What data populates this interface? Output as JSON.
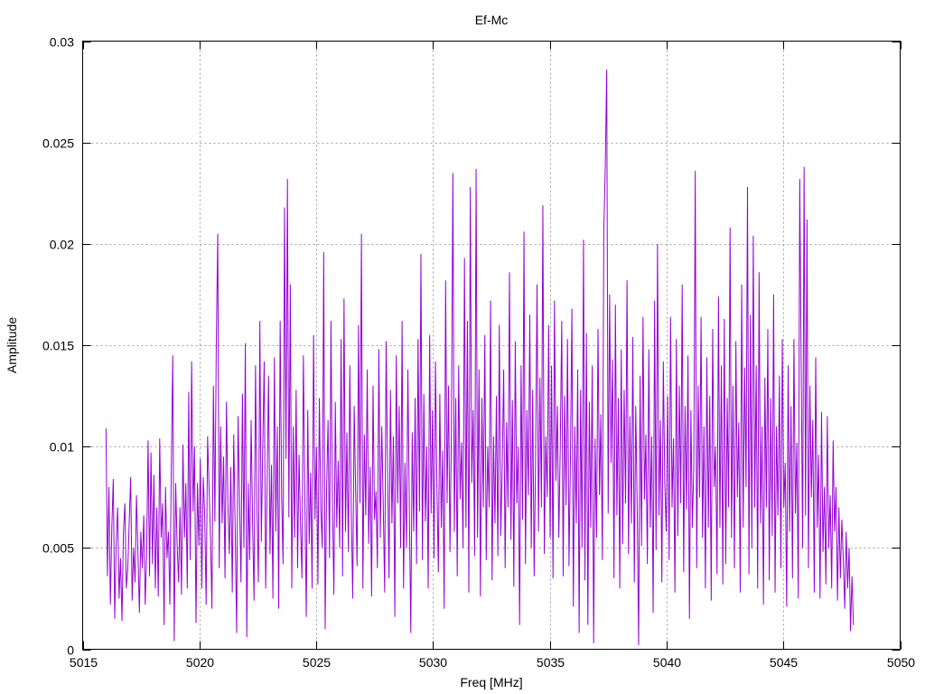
{
  "chart_data": {
    "type": "line",
    "title": "Ef-Mc",
    "xlabel": "Freq [MHz]",
    "ylabel": "Amplitude",
    "xlim": [
      5015,
      5050
    ],
    "ylim": [
      0,
      0.03
    ],
    "xticks": [
      5015,
      5020,
      5025,
      5030,
      5035,
      5040,
      5045,
      5050
    ],
    "xtick_labels": [
      "5015",
      "5020",
      "5025",
      "5030",
      "5035",
      "5040",
      "5045",
      "5050"
    ],
    "yticks": [
      0,
      0.005,
      0.01,
      0.015,
      0.02,
      0.025,
      0.03
    ],
    "ytick_labels": [
      "0",
      "0.005",
      "0.01",
      "0.015",
      "0.02",
      "0.025",
      "0.03"
    ],
    "grid": true,
    "legend": "none",
    "series_color": "#9400d3",
    "series": [
      {
        "x_start": 5016,
        "x_end": 5048,
        "values": [
          0.0109,
          0.0036,
          0.008,
          0.0022,
          0.006,
          0.0084,
          0.0015,
          0.0052,
          0.007,
          0.0025,
          0.0045,
          0.0014,
          0.0058,
          0.0072,
          0.003,
          0.004,
          0.0063,
          0.0085,
          0.0024,
          0.005,
          0.0033,
          0.0076,
          0.0048,
          0.0018,
          0.0058,
          0.004,
          0.0066,
          0.0022,
          0.0048,
          0.0103,
          0.0036,
          0.0097,
          0.0042,
          0.0086,
          0.003,
          0.007,
          0.0026,
          0.0104,
          0.0055,
          0.0072,
          0.0012,
          0.008,
          0.0045,
          0.0058,
          0.0022,
          0.009,
          0.0145,
          0.0004,
          0.0082,
          0.0052,
          0.0033,
          0.007,
          0.0027,
          0.0101,
          0.0055,
          0.0082,
          0.003,
          0.0127,
          0.0044,
          0.0142,
          0.0068,
          0.01,
          0.0013,
          0.0082,
          0.0051,
          0.0094,
          0.003,
          0.0085,
          0.0066,
          0.0022,
          0.0105,
          0.008,
          0.0055,
          0.002,
          0.013,
          0.0063,
          0.0152,
          0.0205,
          0.004,
          0.011,
          0.0062,
          0.0095,
          0.0035,
          0.0122,
          0.0071,
          0.0047,
          0.009,
          0.0028,
          0.0106,
          0.006,
          0.0008,
          0.0115,
          0.0074,
          0.0033,
          0.0126,
          0.005,
          0.0151,
          0.0006,
          0.0082,
          0.0044,
          0.0113,
          0.0062,
          0.0024,
          0.014,
          0.007,
          0.0033,
          0.0162,
          0.0053,
          0.01,
          0.0142,
          0.003,
          0.0081,
          0.0135,
          0.0047,
          0.0091,
          0.0025,
          0.0144,
          0.0058,
          0.011,
          0.002,
          0.0162,
          0.0076,
          0.0042,
          0.0218,
          0.0094,
          0.0232,
          0.0065,
          0.018,
          0.003,
          0.011,
          0.0055,
          0.0128,
          0.004,
          0.0096,
          0.0062,
          0.0035,
          0.0145,
          0.0075,
          0.0016,
          0.0118,
          0.0052,
          0.0087,
          0.003,
          0.0155,
          0.0064,
          0.01,
          0.0032,
          0.0124,
          0.007,
          0.005,
          0.0196,
          0.001,
          0.008,
          0.0113,
          0.0045,
          0.0162,
          0.0074,
          0.0027,
          0.0122,
          0.006,
          0.0093,
          0.005,
          0.0153,
          0.0036,
          0.0173,
          0.0058,
          0.0107,
          0.0048,
          0.014,
          0.0068,
          0.0025,
          0.012,
          0.0078,
          0.0041,
          0.016,
          0.0072,
          0.0205,
          0.003,
          0.0106,
          0.0066,
          0.0138,
          0.0052,
          0.009,
          0.0026,
          0.013,
          0.0064,
          0.0078,
          0.004,
          0.0148,
          0.0055,
          0.011,
          0.0072,
          0.0028,
          0.0152,
          0.009,
          0.0035,
          0.0128,
          0.0062,
          0.0105,
          0.0016,
          0.0145,
          0.0072,
          0.012,
          0.005,
          0.0162,
          0.003,
          0.0092,
          0.005,
          0.0138,
          0.007,
          0.0008,
          0.0107,
          0.0058,
          0.0124,
          0.0042,
          0.0153,
          0.0068,
          0.0195,
          0.0044,
          0.0126,
          0.0063,
          0.01,
          0.003,
          0.0155,
          0.0067,
          0.0118,
          0.0045,
          0.0142,
          0.008,
          0.0038,
          0.0126,
          0.006,
          0.0098,
          0.002,
          0.0182,
          0.0072,
          0.013,
          0.0048,
          0.0108,
          0.0235,
          0.0058,
          0.0124,
          0.0036,
          0.014,
          0.0074,
          0.0102,
          0.005,
          0.0193,
          0.006,
          0.0162,
          0.0028,
          0.0228,
          0.0082,
          0.0118,
          0.0046,
          0.0237,
          0.0055,
          0.0138,
          0.0026,
          0.0124,
          0.007,
          0.0155,
          0.0044,
          0.01,
          0.007,
          0.0172,
          0.0034,
          0.0105,
          0.0062,
          0.0125,
          0.0046,
          0.016,
          0.0056,
          0.009,
          0.0138,
          0.004,
          0.0112,
          0.007,
          0.0186,
          0.0054,
          0.0123,
          0.0031,
          0.0152,
          0.0072,
          0.01,
          0.0012,
          0.014,
          0.0064,
          0.0206,
          0.0042,
          0.0118,
          0.0076,
          0.0165,
          0.005,
          0.0128,
          0.0036,
          0.0094,
          0.018,
          0.0058,
          0.0134,
          0.007,
          0.0219,
          0.0047,
          0.0105,
          0.0075,
          0.016,
          0.0055,
          0.014,
          0.0035,
          0.0172,
          0.0083,
          0.012,
          0.0055,
          0.01,
          0.0162,
          0.0036,
          0.0125,
          0.0071,
          0.0153,
          0.0041,
          0.0094,
          0.0168,
          0.0021,
          0.011,
          0.0062,
          0.0138,
          0.0008,
          0.0128,
          0.005,
          0.0202,
          0.0034,
          0.0156,
          0.0012,
          0.0122,
          0.006,
          0.014,
          0.0003,
          0.0104,
          0.0055,
          0.0158,
          0.0076,
          0.0116,
          0.0044,
          0.0207,
          0.0238,
          0.0286,
          0.0067,
          0.0175,
          0.0092,
          0.0143,
          0.0035,
          0.017,
          0.0066,
          0.0124,
          0.003,
          0.0148,
          0.0052,
          0.0128,
          0.0072,
          0.0182,
          0.0047,
          0.0115,
          0.0062,
          0.0154,
          0.0033,
          0.012,
          0.007,
          0.0002,
          0.0135,
          0.0051,
          0.0164,
          0.0074,
          0.0106,
          0.0042,
          0.0148,
          0.006,
          0.0105,
          0.0018,
          0.0172,
          0.0049,
          0.02,
          0.0066,
          0.0113,
          0.0033,
          0.0142,
          0.0082,
          0.0058,
          0.0125,
          0.0044,
          0.0164,
          0.007,
          0.0104,
          0.0028,
          0.0153,
          0.0056,
          0.013,
          0.0072,
          0.018,
          0.0038,
          0.012,
          0.0069,
          0.0145,
          0.0015,
          0.0118,
          0.006,
          0.009,
          0.0236,
          0.004,
          0.013,
          0.0075,
          0.0164,
          0.0055,
          0.011,
          0.003,
          0.0144,
          0.006,
          0.0125,
          0.0024,
          0.0158,
          0.008,
          0.01,
          0.0037,
          0.0174,
          0.006,
          0.014,
          0.0032,
          0.0163,
          0.0042,
          0.0124,
          0.007,
          0.0208,
          0.0055,
          0.013,
          0.004,
          0.0152,
          0.0075,
          0.0112,
          0.0028,
          0.018,
          0.006,
          0.0139,
          0.008,
          0.0228,
          0.0037,
          0.0165,
          0.005,
          0.0204,
          0.007,
          0.014,
          0.003,
          0.0186,
          0.0062,
          0.011,
          0.0022,
          0.0134,
          0.007,
          0.0158,
          0.0034,
          0.0124,
          0.0056,
          0.0175,
          0.0028,
          0.011,
          0.0066,
          0.0135,
          0.004,
          0.0153,
          0.007,
          0.0092,
          0.0021,
          0.014,
          0.0058,
          0.012,
          0.0035,
          0.0153,
          0.0067,
          0.0102,
          0.0025,
          0.0232,
          0.014,
          0.005,
          0.0238,
          0.0066,
          0.0212,
          0.004,
          0.013,
          0.0075,
          0.0113,
          0.0028,
          0.0144,
          0.006,
          0.0096,
          0.0025,
          0.0117,
          0.0048,
          0.008,
          0.0032,
          0.0115,
          0.005,
          0.0076,
          0.003,
          0.0103,
          0.0058,
          0.008,
          0.0024,
          0.007,
          0.0035,
          0.0064,
          0.0045,
          0.002,
          0.0058,
          0.003,
          0.005,
          0.0009,
          0.0036,
          0.0012
        ]
      }
    ]
  }
}
